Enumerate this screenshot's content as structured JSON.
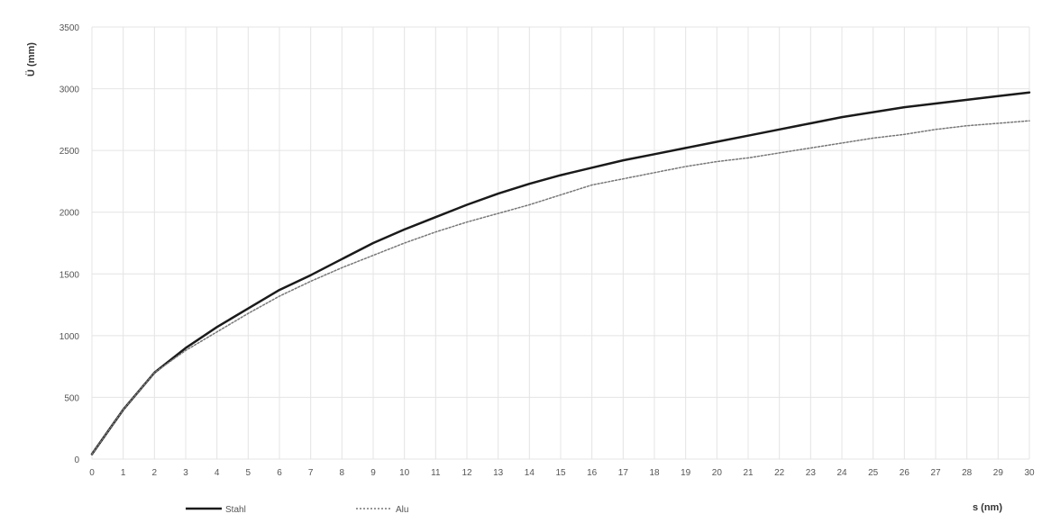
{
  "chart_data": {
    "type": "line",
    "ylabel": "Ü (mm)",
    "xlabel": "s (nm)",
    "xlim": [
      0,
      30
    ],
    "ylim": [
      0,
      3500
    ],
    "x_ticks": [
      0,
      1,
      2,
      3,
      4,
      5,
      6,
      7,
      8,
      9,
      10,
      11,
      12,
      13,
      14,
      15,
      16,
      17,
      18,
      19,
      20,
      21,
      22,
      23,
      24,
      25,
      26,
      27,
      28,
      29,
      30
    ],
    "y_ticks": [
      0,
      500,
      1000,
      1500,
      2000,
      2500,
      3000,
      3500
    ],
    "grid": true,
    "legend": "bottom-left",
    "x": [
      0,
      1,
      2,
      3,
      4,
      5,
      6,
      7,
      8,
      9,
      10,
      11,
      12,
      13,
      14,
      15,
      16,
      17,
      18,
      19,
      20,
      21,
      22,
      23,
      24,
      25,
      26,
      27,
      28,
      29,
      30
    ],
    "series": [
      {
        "name": "Stahl",
        "color": "#1a1a1a",
        "style": "solid",
        "values": [
          40,
          400,
          700,
          900,
          1070,
          1220,
          1370,
          1490,
          1620,
          1750,
          1860,
          1960,
          2060,
          2150,
          2230,
          2300,
          2360,
          2420,
          2470,
          2520,
          2570,
          2620,
          2670,
          2720,
          2770,
          2810,
          2850,
          2880,
          2910,
          2940,
          2970
        ]
      },
      {
        "name": "Alu",
        "color": "#777777",
        "style": "dotted",
        "values": [
          40,
          400,
          700,
          880,
          1030,
          1180,
          1320,
          1440,
          1550,
          1650,
          1750,
          1840,
          1920,
          1990,
          2060,
          2140,
          2220,
          2270,
          2320,
          2370,
          2410,
          2440,
          2480,
          2520,
          2560,
          2600,
          2630,
          2670,
          2700,
          2720,
          2740
        ]
      }
    ]
  }
}
